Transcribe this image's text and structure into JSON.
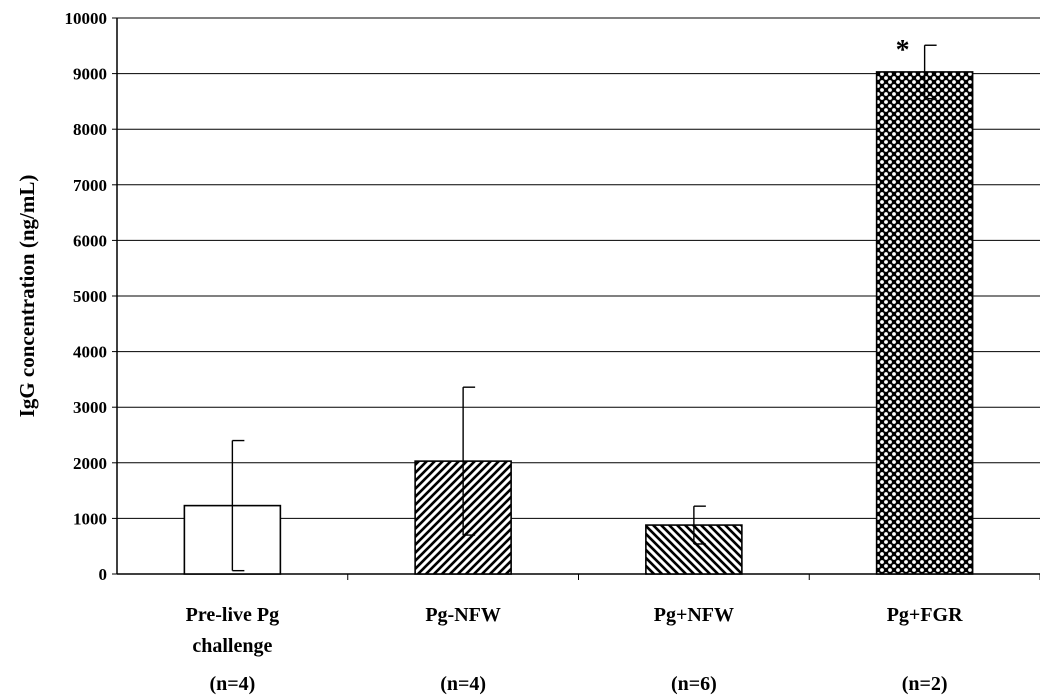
{
  "chart_data": {
    "type": "bar",
    "ylabel": "IgG concentration (ng/mL)",
    "xlabel": "",
    "ylim": [
      0,
      10000
    ],
    "yticks": [
      0,
      1000,
      2000,
      3000,
      4000,
      5000,
      6000,
      7000,
      8000,
      9000,
      10000
    ],
    "grid": true,
    "categories": [
      {
        "lines": [
          "Pre-live Pg",
          "challenge"
        ],
        "n": "(n=4)"
      },
      {
        "lines": [
          "Pg-NFW"
        ],
        "n": "(n=4)"
      },
      {
        "lines": [
          "Pg+NFW"
        ],
        "n": "(n=6)"
      },
      {
        "lines": [
          "Pg+FGR"
        ],
        "n": "(n=2)"
      }
    ],
    "values": [
      1230,
      2030,
      880,
      9030
    ],
    "errors": [
      1170,
      1330,
      340,
      480
    ],
    "fills": [
      "solid-white",
      "hatch-forward",
      "hatch-backward",
      "checkered"
    ],
    "annotations": [
      {
        "category_index": 3,
        "text": "*"
      }
    ]
  }
}
